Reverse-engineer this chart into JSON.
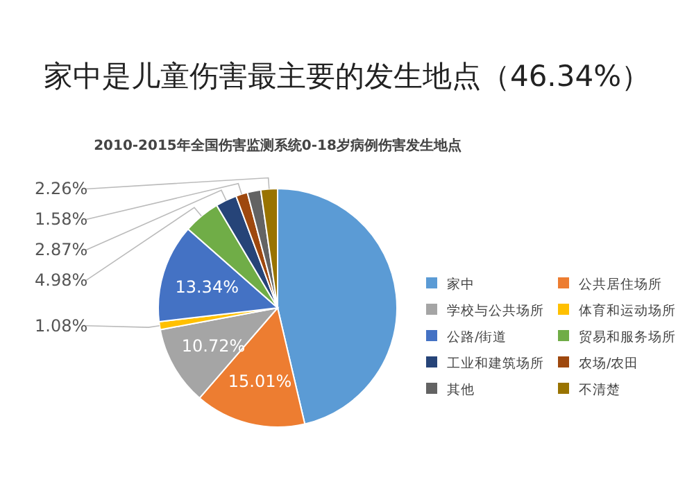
{
  "chart_data": {
    "type": "pie",
    "title": "家中是儿童伤害最主要的发生地点（46.34%）",
    "subtitle": "2010-2015年全国伤害监测系统0-18岁病例伤害发生地点",
    "categories": [
      "家中",
      "公共居住场所",
      "学校与公共场所",
      "体育和运动场所",
      "公路/街道",
      "贸易和服务场所",
      "工业和建筑场所",
      "农场/农田",
      "其他",
      "不清楚"
    ],
    "values": [
      46.34,
      15.01,
      10.72,
      1.08,
      13.34,
      4.98,
      2.87,
      1.58,
      1.82,
      2.26
    ],
    "value_labels": [
      null,
      "15.01%",
      "10.72%",
      "1.08%",
      "13.34%",
      "4.98%",
      "2.87%",
      "1.58%",
      null,
      "2.26%"
    ],
    "colors": [
      "#5b9bd5",
      "#ed7d31",
      "#a5a5a5",
      "#ffc000",
      "#4472c4",
      "#70ad47",
      "#264478",
      "#9e480e",
      "#636363",
      "#997300"
    ],
    "legend": "right"
  }
}
